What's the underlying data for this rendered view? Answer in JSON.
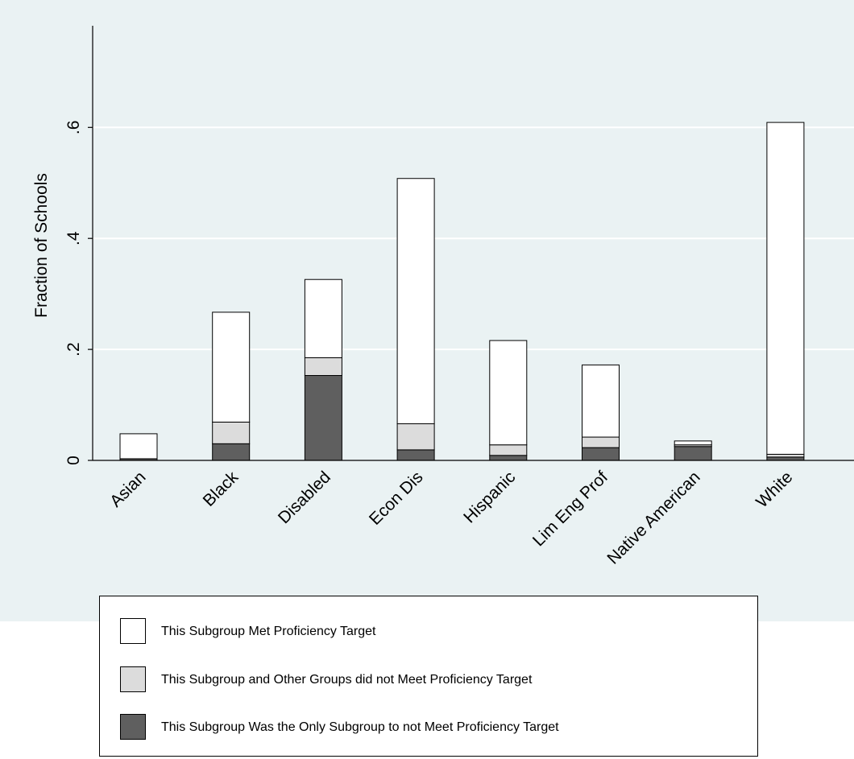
{
  "chart_data": {
    "type": "bar",
    "stacked": true,
    "categories": [
      "Asian",
      "Black",
      "Disabled",
      "Econ Dis",
      "Hispanic",
      "Lim Eng Prof",
      "Native American",
      "White"
    ],
    "series": [
      {
        "name": "This Subgroup Was the Only Subgroup to not Meet Proficiency Target",
        "color": "#5f5f5f",
        "values": [
          0.003,
          0.03,
          0.153,
          0.019,
          0.009,
          0.023,
          0.025,
          0.006
        ]
      },
      {
        "name": "This Subgroup and Other Groups did not Meet Proficiency Target",
        "color": "#dcdcdc",
        "values": [
          0.0,
          0.039,
          0.032,
          0.047,
          0.019,
          0.019,
          0.003,
          0.005
        ]
      },
      {
        "name": "This Subgroup Met Proficiency Target",
        "color": "#ffffff",
        "values": [
          0.045,
          0.198,
          0.141,
          0.442,
          0.188,
          0.13,
          0.007,
          0.598
        ]
      }
    ],
    "legend_order": [
      2,
      1,
      0
    ],
    "xlabel": "",
    "ylabel": "Fraction of Schools",
    "yticks": [
      0,
      0.2,
      0.4,
      0.6
    ],
    "ytick_labels": [
      "0",
      ".2",
      ".4",
      ".6"
    ],
    "ylim": [
      0,
      0.78
    ],
    "grid": true,
    "legend_position": "bottom"
  }
}
